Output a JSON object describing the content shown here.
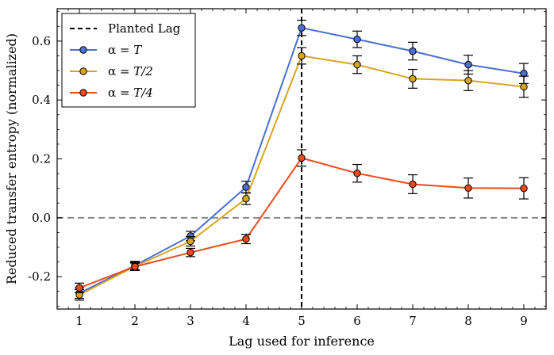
{
  "chart_data": {
    "type": "line",
    "xlabel": "Lag used for inference",
    "ylabel": "Reduced transfer entropy (normalized)",
    "xlim": [
      0.6,
      9.4
    ],
    "ylim": [
      -0.31,
      0.71
    ],
    "x": [
      1,
      2,
      3,
      4,
      5,
      6,
      7,
      8,
      9
    ],
    "xticks": [
      1,
      2,
      3,
      4,
      5,
      6,
      7,
      8,
      9
    ],
    "xtick_labels": [
      "1",
      "2",
      "3",
      "4",
      "5",
      "6",
      "7",
      "8",
      "9"
    ],
    "yticks": [
      -0.2,
      0.0,
      0.2,
      0.4,
      0.6
    ],
    "ytick_labels": [
      "-0.2",
      "0.0",
      "0.2",
      "0.4",
      "0.6"
    ],
    "reference_lines": {
      "planted_lag_x": 5,
      "planted_lag_label": "Planted Lag",
      "zero_y": 0.0
    },
    "legend_position": "top-left",
    "series": [
      {
        "name": "α = T",
        "name_main": "α = ",
        "name_suffix": "T",
        "color": "#4a6fd6",
        "values": [
          -0.256,
          -0.162,
          -0.062,
          0.104,
          0.645,
          0.606,
          0.566,
          0.52,
          0.49
        ],
        "errors": [
          0.018,
          0.014,
          0.016,
          0.02,
          0.026,
          0.028,
          0.03,
          0.032,
          0.034
        ]
      },
      {
        "name": "α = T/2",
        "name_main": "α = ",
        "name_suffix": "T/2",
        "color": "#d9a520",
        "values": [
          -0.262,
          -0.165,
          -0.08,
          0.065,
          0.55,
          0.52,
          0.472,
          0.466,
          0.445
        ],
        "errors": [
          0.018,
          0.014,
          0.016,
          0.02,
          0.028,
          0.03,
          0.032,
          0.034,
          0.036
        ]
      },
      {
        "name": "α = T/4",
        "name_main": "α = ",
        "name_suffix": "T/4",
        "color": "#ee4a1c",
        "values": [
          -0.238,
          -0.166,
          -0.118,
          -0.072,
          0.203,
          0.151,
          0.114,
          0.101,
          0.1
        ],
        "errors": [
          0.016,
          0.012,
          0.014,
          0.016,
          0.028,
          0.03,
          0.032,
          0.034,
          0.036
        ]
      }
    ]
  }
}
